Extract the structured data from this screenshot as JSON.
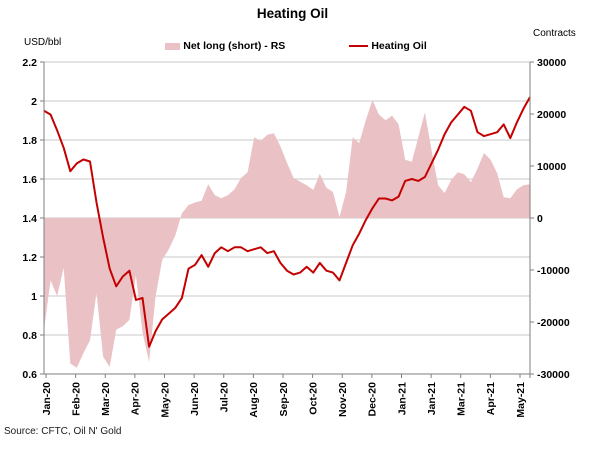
{
  "source": "Source: CFTC, Oil N' Gold",
  "colors": {
    "area_fill": "#eac2c6",
    "line": "#c40000",
    "gridline": "#c9c9c9",
    "axis": "#7f7f7f"
  },
  "chart_data": {
    "type": "combo",
    "title": "Heating Oil",
    "grid": true,
    "legend_position": "top",
    "x": {
      "unit": "week",
      "start_label": "Jan-20",
      "end_label": "May-21",
      "tick_labels": [
        "Jan-20",
        "Feb-20",
        "Mar-20",
        "Apr-20",
        "May-20",
        "Jun-20",
        "Jul-20",
        "Aug-20",
        "Sep-20",
        "Oct-20",
        "Nov-20",
        "Dec-20",
        "Jan-21",
        "Jan-21",
        "Mar-21",
        "Apr-21",
        "May-21"
      ]
    },
    "y_left": {
      "label": "USD/bbl",
      "min": 0.6,
      "max": 2.2,
      "tick_step": 0.2,
      "ticks": [
        "2.2",
        "2",
        "1.8",
        "1.6",
        "1.4",
        "1.2",
        "1",
        "0.8",
        "0.6"
      ]
    },
    "y_right": {
      "label": "Contracts",
      "min": -30000,
      "max": 30000,
      "tick_step": 10000,
      "ticks": [
        "30000",
        "20000",
        "10000",
        "0",
        "-10000",
        "-20000",
        "-30000"
      ]
    },
    "series": [
      {
        "name": "Net long (short) - RS",
        "type": "area",
        "axis": "right",
        "color": "#eac2c6",
        "values": [
          -21500,
          -12000,
          -15000,
          -9600,
          -28000,
          -28800,
          -26000,
          -23500,
          -14400,
          -26700,
          -28650,
          -21500,
          -20800,
          -19600,
          -11000,
          -22000,
          -27700,
          -15000,
          -8100,
          -6000,
          -3300,
          900,
          2500,
          3000,
          3300,
          6500,
          4400,
          3800,
          4400,
          5500,
          7700,
          8800,
          15500,
          14800,
          16000,
          16300,
          13800,
          10600,
          7700,
          7000,
          6300,
          5400,
          8500,
          5800,
          5000,
          200,
          5000,
          15500,
          14400,
          18800,
          22700,
          19900,
          18800,
          19700,
          18000,
          11200,
          10800,
          15600,
          20300,
          13100,
          6300,
          4800,
          7300,
          8800,
          8400,
          6900,
          9500,
          12500,
          11200,
          8600,
          4000,
          3800,
          5500,
          6300,
          6500
        ]
      },
      {
        "name": "Heating Oil",
        "type": "line",
        "axis": "left",
        "color": "#c40000",
        "values": [
          1.95,
          1.93,
          1.85,
          1.76,
          1.64,
          1.68,
          1.7,
          1.69,
          1.48,
          1.3,
          1.14,
          1.05,
          1.1,
          1.13,
          0.98,
          0.99,
          0.74,
          0.82,
          0.88,
          0.91,
          0.94,
          0.99,
          1.14,
          1.16,
          1.21,
          1.15,
          1.22,
          1.25,
          1.23,
          1.25,
          1.25,
          1.23,
          1.24,
          1.25,
          1.22,
          1.23,
          1.17,
          1.13,
          1.11,
          1.12,
          1.15,
          1.12,
          1.17,
          1.13,
          1.12,
          1.08,
          1.17,
          1.26,
          1.32,
          1.39,
          1.45,
          1.5,
          1.5,
          1.49,
          1.51,
          1.59,
          1.6,
          1.59,
          1.61,
          1.68,
          1.75,
          1.83,
          1.89,
          1.93,
          1.97,
          1.95,
          1.84,
          1.82,
          1.83,
          1.84,
          1.88,
          1.81,
          1.89,
          1.96,
          2.02
        ]
      }
    ]
  }
}
